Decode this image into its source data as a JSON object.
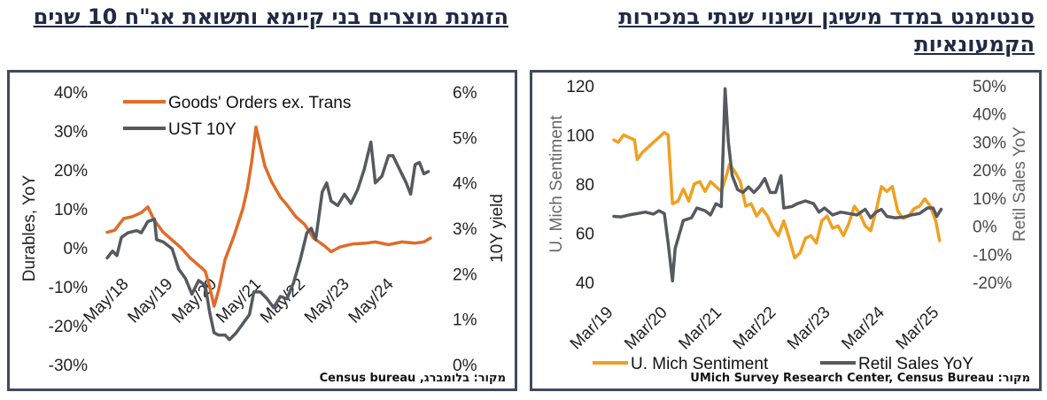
{
  "titles": {
    "left": "הזמנת מוצרים בני קיימא ותשואת אג\"ח 10 שנים",
    "right": "סנטימנט במדד מישיגן ושינוי שנתי במכירות הקמעונאיות"
  },
  "sources": {
    "left": "מקור: בלומברג, Census bureau",
    "right": "מקור: UMich Survey Research Center, Census Bureau"
  },
  "colors": {
    "orange_series": "#e06c28",
    "gray_series": "#555a60",
    "gold_series": "#f0a020",
    "frame": "#3f4a5e"
  },
  "chart_data": [
    {
      "type": "line",
      "legend_position": "top-left",
      "grid": false,
      "ylabel": "Durables, YoY",
      "y2label": "10Y yield",
      "ylim": [
        -30,
        40
      ],
      "y2lim": [
        0,
        6
      ],
      "yticks": [
        "40%",
        "30%",
        "20%",
        "10%",
        "0%",
        "-10%",
        "-20%",
        "-30%"
      ],
      "y2ticks": [
        "6%",
        "5%",
        "4%",
        "3%",
        "2%",
        "1%",
        "0%"
      ],
      "xlim": [
        2017.83,
        2025.25
      ],
      "xticks": [
        {
          "label": "May/18",
          "x": 2018.33
        },
        {
          "label": "May/19",
          "x": 2019.33
        },
        {
          "label": "May/20",
          "x": 2020.33
        },
        {
          "label": "May/21",
          "x": 2021.33
        },
        {
          "label": "May/22",
          "x": 2022.33
        },
        {
          "label": "May/23",
          "x": 2023.33
        },
        {
          "label": "May/24",
          "x": 2024.33
        }
      ],
      "series": [
        {
          "name": "Goods' Orders ex. Trans",
          "axis": "left",
          "color": "#e06c28",
          "points": [
            [
              2017.83,
              4
            ],
            [
              2018.0,
              4.5
            ],
            [
              2018.2,
              7.5
            ],
            [
              2018.4,
              8
            ],
            [
              2018.6,
              9
            ],
            [
              2018.75,
              10.5
            ],
            [
              2018.9,
              7
            ],
            [
              2019.1,
              4
            ],
            [
              2019.3,
              2
            ],
            [
              2019.5,
              0
            ],
            [
              2019.7,
              -2.5
            ],
            [
              2019.9,
              -4.5
            ],
            [
              2020.05,
              -6
            ],
            [
              2020.15,
              -10
            ],
            [
              2020.25,
              -15
            ],
            [
              2020.35,
              -11
            ],
            [
              2020.5,
              -3
            ],
            [
              2020.7,
              3
            ],
            [
              2020.9,
              10
            ],
            [
              2021.0,
              15
            ],
            [
              2021.1,
              22
            ],
            [
              2021.2,
              31
            ],
            [
              2021.3,
              26
            ],
            [
              2021.4,
              21
            ],
            [
              2021.55,
              17
            ],
            [
              2021.75,
              13
            ],
            [
              2021.9,
              11
            ],
            [
              2022.1,
              8
            ],
            [
              2022.3,
              6
            ],
            [
              2022.5,
              2.5
            ],
            [
              2022.75,
              0.5
            ],
            [
              2022.9,
              -1
            ],
            [
              2023.1,
              0.2
            ],
            [
              2023.4,
              1
            ],
            [
              2023.7,
              1.2
            ],
            [
              2023.9,
              1.5
            ],
            [
              2024.2,
              0.8
            ],
            [
              2024.5,
              1.5
            ],
            [
              2024.8,
              1.2
            ],
            [
              2025.0,
              1.5
            ],
            [
              2025.15,
              2.5
            ]
          ]
        },
        {
          "name": "UST 10Y",
          "axis": "right",
          "color": "#555a60",
          "points": [
            [
              2017.83,
              2.35
            ],
            [
              2017.95,
              2.5
            ],
            [
              2018.05,
              2.4
            ],
            [
              2018.15,
              2.8
            ],
            [
              2018.3,
              2.9
            ],
            [
              2018.5,
              2.95
            ],
            [
              2018.6,
              2.9
            ],
            [
              2018.75,
              3.15
            ],
            [
              2018.9,
              3.2
            ],
            [
              2018.95,
              2.75
            ],
            [
              2019.1,
              2.7
            ],
            [
              2019.3,
              2.55
            ],
            [
              2019.45,
              2.1
            ],
            [
              2019.6,
              1.9
            ],
            [
              2019.75,
              1.55
            ],
            [
              2019.9,
              1.85
            ],
            [
              2020.05,
              1.75
            ],
            [
              2020.15,
              1.15
            ],
            [
              2020.25,
              0.7
            ],
            [
              2020.35,
              0.65
            ],
            [
              2020.5,
              0.65
            ],
            [
              2020.6,
              0.55
            ],
            [
              2020.75,
              0.7
            ],
            [
              2020.9,
              0.9
            ],
            [
              2021.05,
              1.1
            ],
            [
              2021.15,
              1.6
            ],
            [
              2021.3,
              1.6
            ],
            [
              2021.45,
              1.45
            ],
            [
              2021.6,
              1.25
            ],
            [
              2021.75,
              1.5
            ],
            [
              2021.9,
              1.45
            ],
            [
              2022.05,
              1.8
            ],
            [
              2022.2,
              2.3
            ],
            [
              2022.35,
              2.9
            ],
            [
              2022.45,
              3.0
            ],
            [
              2022.55,
              2.75
            ],
            [
              2022.7,
              3.8
            ],
            [
              2022.8,
              4.0
            ],
            [
              2022.9,
              3.6
            ],
            [
              2023.05,
              3.5
            ],
            [
              2023.2,
              3.75
            ],
            [
              2023.35,
              3.55
            ],
            [
              2023.5,
              3.85
            ],
            [
              2023.65,
              4.3
            ],
            [
              2023.8,
              4.9
            ],
            [
              2023.9,
              4.0
            ],
            [
              2024.05,
              4.15
            ],
            [
              2024.2,
              4.6
            ],
            [
              2024.3,
              4.6
            ],
            [
              2024.45,
              4.3
            ],
            [
              2024.6,
              4.0
            ],
            [
              2024.7,
              3.75
            ],
            [
              2024.8,
              4.4
            ],
            [
              2024.9,
              4.45
            ],
            [
              2025.0,
              4.2
            ],
            [
              2025.1,
              4.25
            ]
          ]
        }
      ]
    },
    {
      "type": "line",
      "legend_position": "bottom",
      "grid": false,
      "ylabel": "U. Mich Sentiment",
      "y2label": "Retil Sales YoY",
      "ylim": [
        40,
        120
      ],
      "y2lim": [
        -20,
        50
      ],
      "yticks": [
        "120",
        "100",
        "80",
        "60",
        "40"
      ],
      "y2ticks": [
        "50%",
        "40%",
        "30%",
        "20%",
        "10%",
        "0%",
        "-10%",
        "-20%"
      ],
      "xlim": [
        2019.17,
        2025.42
      ],
      "xticks": [
        {
          "label": "Mar/19",
          "x": 2019.17
        },
        {
          "label": "Mar/20",
          "x": 2020.17
        },
        {
          "label": "Mar/21",
          "x": 2021.17
        },
        {
          "label": "Mar/22",
          "x": 2022.17
        },
        {
          "label": "Mar/23",
          "x": 2023.17
        },
        {
          "label": "Mar/24",
          "x": 2024.17
        },
        {
          "label": "Mar/25",
          "x": 2025.17
        }
      ],
      "series": [
        {
          "name": "U. Mich Sentiment",
          "axis": "left",
          "color": "#f0a020",
          "points": [
            [
              2019.17,
              98
            ],
            [
              2019.25,
              97
            ],
            [
              2019.35,
              100
            ],
            [
              2019.45,
              99
            ],
            [
              2019.55,
              98
            ],
            [
              2019.6,
              90
            ],
            [
              2019.7,
              93
            ],
            [
              2019.8,
              95
            ],
            [
              2019.9,
              97
            ],
            [
              2020.0,
              99
            ],
            [
              2020.1,
              101
            ],
            [
              2020.17,
              100
            ],
            [
              2020.25,
              72
            ],
            [
              2020.35,
              73
            ],
            [
              2020.45,
              78
            ],
            [
              2020.55,
              73
            ],
            [
              2020.65,
              80
            ],
            [
              2020.75,
              81
            ],
            [
              2020.85,
              77
            ],
            [
              2020.95,
              81
            ],
            [
              2021.05,
              79
            ],
            [
              2021.15,
              77
            ],
            [
              2021.25,
              84
            ],
            [
              2021.3,
              88
            ],
            [
              2021.4,
              85
            ],
            [
              2021.5,
              81
            ],
            [
              2021.6,
              71
            ],
            [
              2021.7,
              72
            ],
            [
              2021.8,
              67
            ],
            [
              2021.9,
              70
            ],
            [
              2022.0,
              67
            ],
            [
              2022.1,
              62
            ],
            [
              2022.2,
              59
            ],
            [
              2022.3,
              65
            ],
            [
              2022.4,
              58
            ],
            [
              2022.5,
              50
            ],
            [
              2022.6,
              52
            ],
            [
              2022.7,
              58
            ],
            [
              2022.8,
              59
            ],
            [
              2022.9,
              56
            ],
            [
              2023.0,
              65
            ],
            [
              2023.1,
              67
            ],
            [
              2023.2,
              62
            ],
            [
              2023.3,
              63
            ],
            [
              2023.4,
              59
            ],
            [
              2023.5,
              64
            ],
            [
              2023.6,
              71
            ],
            [
              2023.7,
              68
            ],
            [
              2023.8,
              63
            ],
            [
              2023.9,
              61
            ],
            [
              2024.0,
              69
            ],
            [
              2024.1,
              79
            ],
            [
              2024.2,
              77
            ],
            [
              2024.3,
              79
            ],
            [
              2024.4,
              69
            ],
            [
              2024.5,
              66
            ],
            [
              2024.6,
              67
            ],
            [
              2024.7,
              70
            ],
            [
              2024.8,
              71
            ],
            [
              2024.9,
              74
            ],
            [
              2025.0,
              71
            ],
            [
              2025.1,
              65
            ],
            [
              2025.17,
              57
            ]
          ]
        },
        {
          "name": "Retil Sales YoY",
          "axis": "right",
          "color": "#555a60",
          "points": [
            [
              2019.17,
              3.5
            ],
            [
              2019.3,
              3.3
            ],
            [
              2019.45,
              4
            ],
            [
              2019.6,
              4.5
            ],
            [
              2019.75,
              5
            ],
            [
              2019.9,
              4.3
            ],
            [
              2020.0,
              5.5
            ],
            [
              2020.1,
              4.5
            ],
            [
              2020.17,
              -6
            ],
            [
              2020.25,
              -19.5
            ],
            [
              2020.3,
              -8
            ],
            [
              2020.45,
              2
            ],
            [
              2020.6,
              3
            ],
            [
              2020.7,
              6.5
            ],
            [
              2020.85,
              5.5
            ],
            [
              2020.95,
              4
            ],
            [
              2021.05,
              8
            ],
            [
              2021.15,
              7
            ],
            [
              2021.22,
              49
            ],
            [
              2021.28,
              30
            ],
            [
              2021.35,
              18
            ],
            [
              2021.45,
              13
            ],
            [
              2021.55,
              12
            ],
            [
              2021.65,
              14
            ],
            [
              2021.75,
              12
            ],
            [
              2021.85,
              14
            ],
            [
              2021.95,
              17
            ],
            [
              2022.05,
              12
            ],
            [
              2022.15,
              12
            ],
            [
              2022.25,
              18
            ],
            [
              2022.3,
              6.5
            ],
            [
              2022.45,
              7
            ],
            [
              2022.55,
              8
            ],
            [
              2022.7,
              9
            ],
            [
              2022.85,
              8
            ],
            [
              2022.95,
              5
            ],
            [
              2023.05,
              6.5
            ],
            [
              2023.2,
              4
            ],
            [
              2023.35,
              5
            ],
            [
              2023.5,
              4.5
            ],
            [
              2023.65,
              4
            ],
            [
              2023.8,
              6
            ],
            [
              2023.9,
              3
            ],
            [
              2024.0,
              5
            ],
            [
              2024.1,
              6
            ],
            [
              2024.2,
              3.5
            ],
            [
              2024.35,
              3
            ],
            [
              2024.5,
              3.2
            ],
            [
              2024.65,
              4
            ],
            [
              2024.8,
              4.5
            ],
            [
              2024.95,
              6.5
            ],
            [
              2025.05,
              6.5
            ],
            [
              2025.12,
              3.5
            ],
            [
              2025.2,
              6
            ]
          ]
        }
      ]
    }
  ]
}
